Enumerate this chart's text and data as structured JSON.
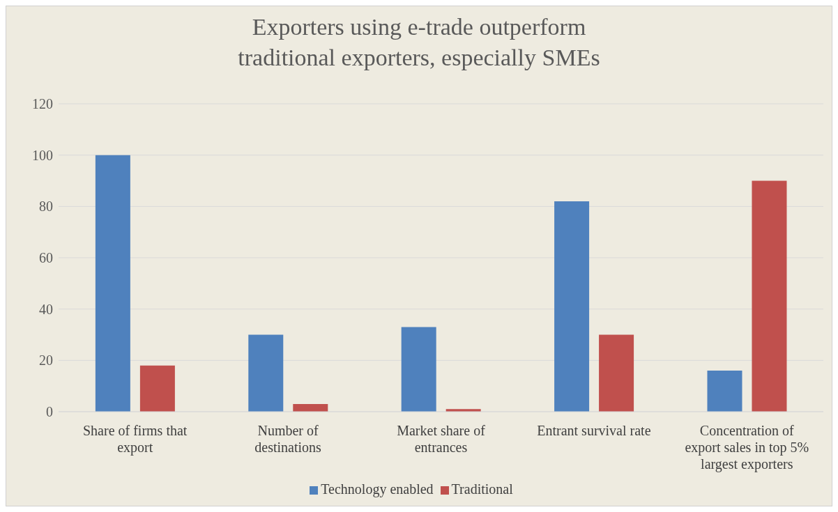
{
  "chart_data": {
    "type": "bar",
    "title": "Exporters using e-trade outperform traditional exporters, especially SMEs",
    "categories": [
      "Share of firms that export",
      "Number of destinations",
      "Market share of entrances",
      "Entrant survival rate",
      "Concentration of export sales in top 5% largest exporters"
    ],
    "series": [
      {
        "name": "Technology enabled",
        "color": "#4f81bd",
        "values": [
          100,
          30,
          33,
          82,
          16
        ]
      },
      {
        "name": "Traditional",
        "color": "#c0504d",
        "values": [
          18,
          3,
          1,
          30,
          90
        ]
      }
    ],
    "ylim": [
      0,
      120
    ],
    "yticks": [
      0,
      20,
      40,
      60,
      80,
      100,
      120
    ],
    "grid": "y",
    "legend": "bottom"
  }
}
